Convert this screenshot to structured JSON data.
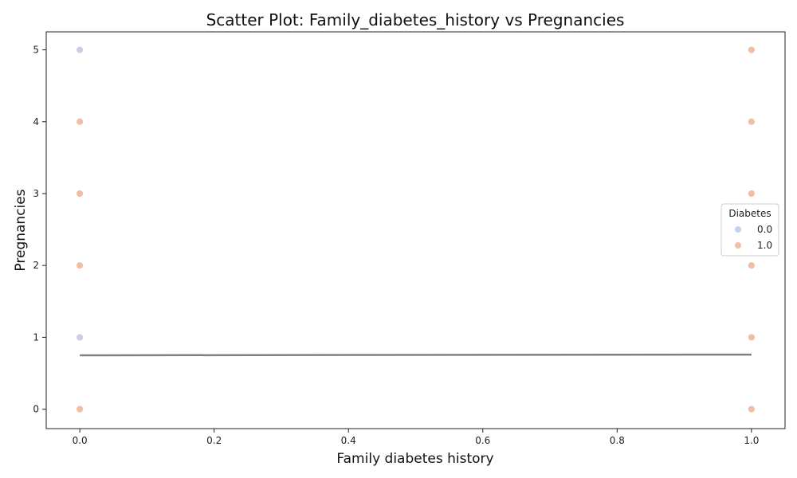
{
  "chart_data": {
    "type": "scatter",
    "title": "Scatter Plot: Family_diabetes_history vs Pregnancies",
    "xlabel": "Family diabetes history",
    "ylabel": "Pregnancies",
    "xlim": [
      -0.05,
      1.05
    ],
    "ylim": [
      -0.27,
      5.25
    ],
    "x_ticks": [
      0.0,
      0.2,
      0.4,
      0.6,
      0.8,
      1.0
    ],
    "x_tick_labels": [
      "0.0",
      "0.2",
      "0.4",
      "0.6",
      "0.8",
      "1.0"
    ],
    "y_ticks": [
      0,
      1,
      2,
      3,
      4,
      5
    ],
    "y_tick_labels": [
      "0",
      "1",
      "2",
      "3",
      "4",
      "5"
    ],
    "grid": false,
    "legend": {
      "title": "Diabetes",
      "placement": "center-right",
      "entries": [
        {
          "label": "0.0",
          "color": "#c2d3ef"
        },
        {
          "label": "1.0",
          "color": "#efbea6"
        }
      ]
    },
    "series": [
      {
        "name": "0.0",
        "color": "#c2c6e0",
        "points": [
          [
            0,
            5
          ],
          [
            0,
            1
          ]
        ]
      },
      {
        "name": "1.0",
        "color": "#efb394",
        "points": [
          [
            0,
            4
          ],
          [
            0,
            3
          ],
          [
            0,
            2
          ],
          [
            0,
            0
          ],
          [
            1,
            5
          ],
          [
            1,
            4
          ],
          [
            1,
            3
          ],
          [
            1,
            2
          ],
          [
            1,
            1
          ],
          [
            1,
            0
          ]
        ]
      }
    ],
    "trend_line": {
      "color": "#808080",
      "points": [
        [
          0,
          0.75
        ],
        [
          1,
          0.76
        ]
      ]
    }
  }
}
